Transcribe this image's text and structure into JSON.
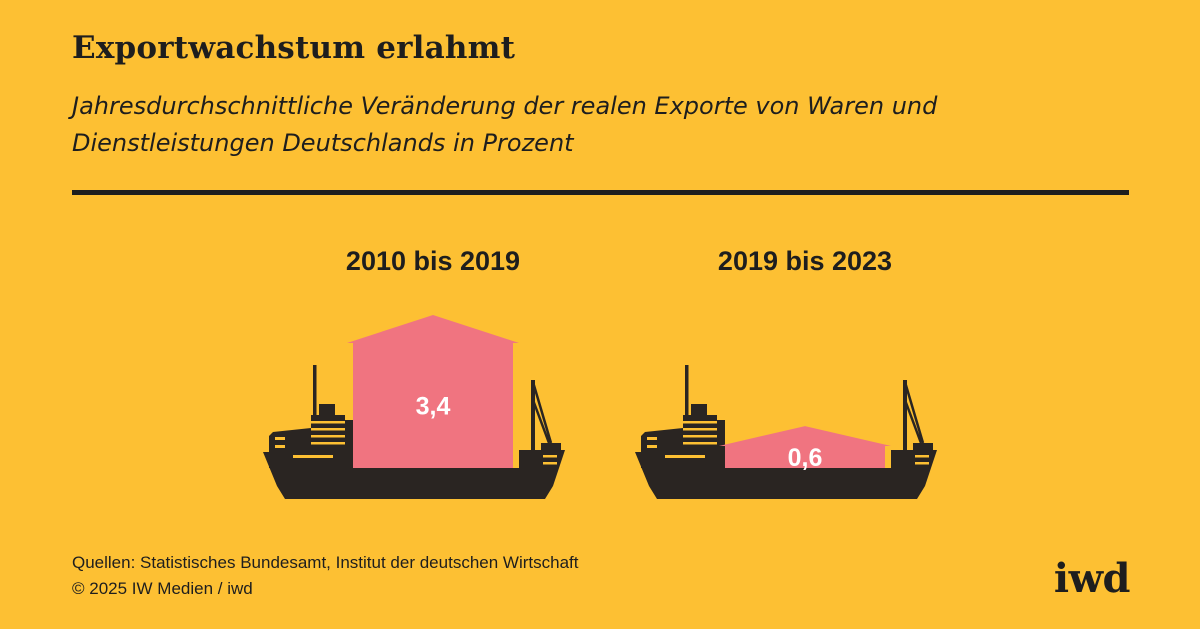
{
  "header": {
    "title": "Exportwachstum erlahmt",
    "subtitle": "Jahresdurchschnittliche Veränderung der realen Exporte von Waren und Dienstleistungen Deutschlands in Prozent"
  },
  "chart_data": {
    "type": "bar",
    "title": "Exportwachstum erlahmt",
    "ylabel": "Prozent",
    "categories": [
      "2010 bis 2019",
      "2019 bis 2023"
    ],
    "values": [
      3.4,
      0.6
    ],
    "value_labels": [
      "3,4",
      "0,6"
    ],
    "ylim": [
      0,
      3.4
    ]
  },
  "footer": {
    "source": "Quellen: Statistisches Bundesamt, Institut der deutschen Wirtschaft",
    "copyright": "© 2025 IW Medien / iwd"
  },
  "logo": {
    "text": "iwd"
  },
  "colors": {
    "background": "#FDC033",
    "ship": "#2A2522",
    "cargo": "#F07480",
    "text": "#1E1E1E",
    "label_on_cargo": "#FFFFFF"
  }
}
